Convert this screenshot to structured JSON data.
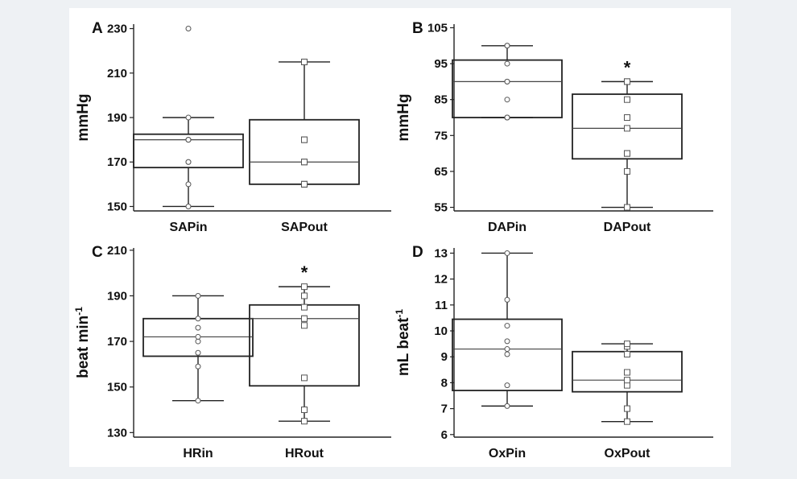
{
  "chart_data": [
    {
      "panel_label": "A",
      "type": "box",
      "ylabel": "mmHg",
      "ylabel_sup": "",
      "ylim": [
        148,
        232
      ],
      "yticks": [
        150,
        170,
        190,
        210,
        230
      ],
      "ytick_labels": [
        "150",
        "170",
        "190",
        "210",
        "230"
      ],
      "categories": [
        "SAPin",
        "SAPout"
      ],
      "boxes": [
        {
          "whisker_low": 150,
          "q1": 167.5,
          "median": 180,
          "q3": 182.5,
          "whisker_high": 190,
          "marker": "circle",
          "points": [
            150,
            160,
            170,
            170,
            180,
            180,
            180,
            190,
            230
          ]
        },
        {
          "whisker_low": 160,
          "q1": 160,
          "median": 170,
          "q3": 189,
          "whisker_high": 215,
          "marker": "square",
          "points": [
            160,
            160,
            160,
            170,
            170,
            180,
            180,
            215,
            215
          ]
        }
      ],
      "significance": [
        "",
        ""
      ]
    },
    {
      "panel_label": "B",
      "type": "box",
      "ylabel": "mmHg",
      "ylabel_sup": "",
      "ylim": [
        54,
        106
      ],
      "yticks": [
        55,
        65,
        75,
        85,
        95,
        105
      ],
      "ytick_labels": [
        "55",
        "65",
        "75",
        "85",
        "95",
        "105"
      ],
      "categories": [
        "DAPin",
        "DAPout"
      ],
      "boxes": [
        {
          "whisker_low": 80,
          "q1": 80,
          "median": 90,
          "q3": 96,
          "whisker_high": 100,
          "marker": "circle",
          "points": [
            80,
            80,
            80,
            85,
            90,
            90,
            95,
            100,
            100
          ]
        },
        {
          "whisker_low": 55,
          "q1": 68.5,
          "median": 77,
          "q3": 86.5,
          "whisker_high": 90,
          "marker": "square",
          "points": [
            55,
            65,
            70,
            70,
            77,
            80,
            85,
            90,
            90
          ]
        }
      ],
      "significance": [
        "",
        "*"
      ]
    },
    {
      "panel_label": "C",
      "type": "box",
      "ylabel": "beat min",
      "ylabel_sup": "-1",
      "ylim": [
        128,
        211
      ],
      "yticks": [
        130,
        150,
        170,
        190,
        210
      ],
      "ytick_labels": [
        "130",
        "150",
        "170",
        "190",
        "210"
      ],
      "categories": [
        "HRin",
        "HRout"
      ],
      "boxes": [
        {
          "whisker_low": 144,
          "q1": 163.5,
          "median": 172,
          "q3": 180,
          "whisker_high": 190,
          "marker": "circle",
          "points": [
            144,
            159,
            165,
            170,
            172,
            176,
            180,
            190
          ]
        },
        {
          "whisker_low": 135,
          "q1": 150.5,
          "median": 180,
          "q3": 186,
          "whisker_high": 194,
          "marker": "square",
          "points": [
            135,
            140,
            154,
            177,
            180,
            180,
            185,
            190,
            194
          ]
        }
      ],
      "significance": [
        "",
        "*"
      ]
    },
    {
      "panel_label": "D",
      "type": "box",
      "ylabel": "mL beat",
      "ylabel_sup": "-1",
      "ylim": [
        5.9,
        13.2
      ],
      "yticks": [
        6,
        7,
        8,
        9,
        10,
        11,
        12,
        13
      ],
      "ytick_labels": [
        "6",
        "7",
        "8",
        "9",
        "10",
        "11",
        "12",
        "13"
      ],
      "categories": [
        "OxPin",
        "OxPout"
      ],
      "boxes": [
        {
          "whisker_low": 7.1,
          "q1": 7.7,
          "median": 9.3,
          "q3": 10.45,
          "whisker_high": 13,
          "marker": "circle",
          "points": [
            7.1,
            7.9,
            9.1,
            9.3,
            9.6,
            10.2,
            11.2,
            13
          ]
        },
        {
          "whisker_low": 6.5,
          "q1": 7.65,
          "median": 8.1,
          "q3": 9.2,
          "whisker_high": 9.5,
          "marker": "square",
          "points": [
            6.5,
            7.0,
            7.9,
            8.1,
            8.4,
            9.1,
            9.4,
            9.5
          ]
        }
      ],
      "significance": [
        "",
        ""
      ]
    }
  ]
}
